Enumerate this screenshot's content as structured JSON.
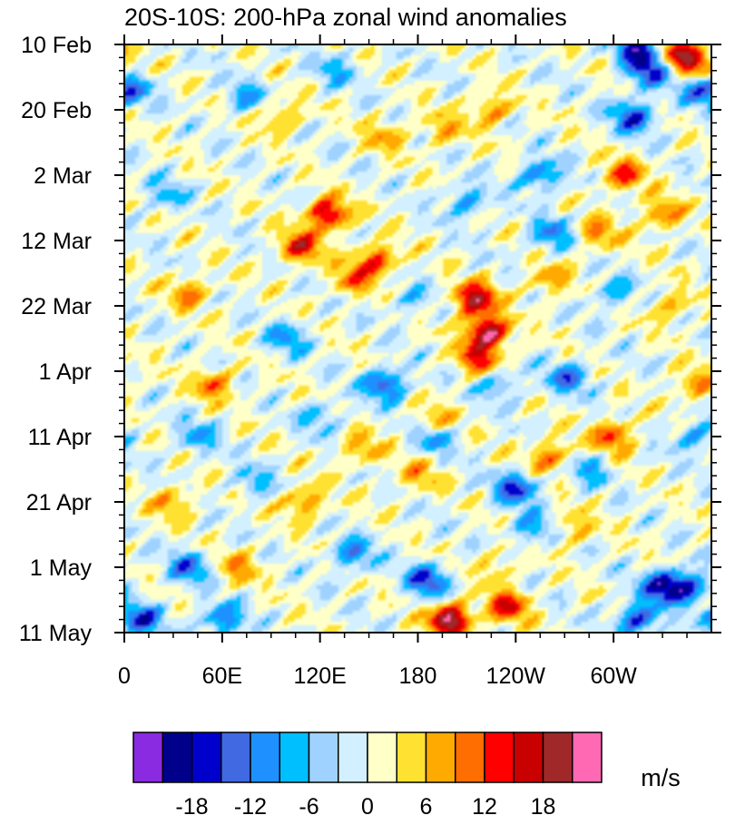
{
  "chart_data": {
    "type": "heatmap",
    "title": "20S-10S: 200-hPa zonal wind anomalies",
    "x_tick_labels": [
      "0",
      "60E",
      "120E",
      "180",
      "120W",
      "60W"
    ],
    "x_tick_degrees": [
      0,
      60,
      120,
      180,
      240,
      300
    ],
    "x_range_degrees": [
      0,
      360
    ],
    "y_tick_labels": [
      "10 Feb",
      "20 Feb",
      "2 Mar",
      "12 Mar",
      "22 Mar",
      "1 Apr",
      "11 Apr",
      "21 Apr",
      "1 May",
      "11 May"
    ],
    "y_tick_days": [
      0,
      10,
      20,
      30,
      40,
      50,
      60,
      70,
      80,
      90
    ],
    "y_range_days": [
      0,
      90
    ],
    "colorbar": {
      "unit": "m/s",
      "tick_labels": [
        "-18",
        "-12",
        "-6",
        "0",
        "6",
        "12",
        "18"
      ],
      "tick_values": [
        -18,
        -12,
        -6,
        0,
        6,
        12,
        18
      ],
      "levels": [
        -21,
        -18,
        -15,
        -12,
        -9,
        -6,
        -3,
        0,
        3,
        6,
        9,
        12,
        15,
        18,
        21
      ],
      "colors": [
        "#8a2be2",
        "#00008b",
        "#0000cd",
        "#4169e1",
        "#1e90ff",
        "#00bfff",
        "#a0d2ff",
        "#d2f0ff",
        "#ffffc8",
        "#ffe132",
        "#ffaa00",
        "#ff6e00",
        "#ff0000",
        "#c80000",
        "#a02828",
        "#ff69b4"
      ]
    },
    "features": [
      {
        "lon": 315,
        "day": 0.5,
        "value": -18
      },
      {
        "lon": 322,
        "day": 4,
        "value": -16
      },
      {
        "lon": 312,
        "day": 11,
        "value": -15
      },
      {
        "lon": 348,
        "day": 3,
        "value": 13
      },
      {
        "lon": 337,
        "day": 1,
        "value": 12
      },
      {
        "lon": 125,
        "day": 26,
        "value": 18
      },
      {
        "lon": 108,
        "day": 31,
        "value": 14
      },
      {
        "lon": 215,
        "day": 39,
        "value": 19
      },
      {
        "lon": 223,
        "day": 44,
        "value": 21
      },
      {
        "lon": 217,
        "day": 48,
        "value": 13
      },
      {
        "lon": 300,
        "day": 60,
        "value": 12
      },
      {
        "lon": 262,
        "day": 63,
        "value": 11
      },
      {
        "lon": 155,
        "day": 33,
        "value": 13
      },
      {
        "lon": 200,
        "day": 88,
        "value": 22
      },
      {
        "lon": 235,
        "day": 86,
        "value": 14
      },
      {
        "lon": 225,
        "day": 10,
        "value": 9
      },
      {
        "lon": 306,
        "day": 20,
        "value": 12
      },
      {
        "lon": 330,
        "day": 26,
        "value": 10
      },
      {
        "lon": 290,
        "day": 29,
        "value": 9
      },
      {
        "lon": 40,
        "day": 38,
        "value": 9
      },
      {
        "lon": 55,
        "day": 52,
        "value": 10
      },
      {
        "lon": 140,
        "day": 36,
        "value": 9
      },
      {
        "lon": 190,
        "day": 58,
        "value": 9
      },
      {
        "lon": 110,
        "day": 70,
        "value": 10
      },
      {
        "lon": 30,
        "day": 70,
        "value": 8
      },
      {
        "lon": 70,
        "day": 80,
        "value": 8
      },
      {
        "lon": 260,
        "day": 36,
        "value": 8
      },
      {
        "lon": 350,
        "day": 52,
        "value": 9
      },
      {
        "lon": 335,
        "day": 40,
        "value": 7
      },
      {
        "lon": 96,
        "day": 11,
        "value": 8
      },
      {
        "lon": 160,
        "day": 14,
        "value": 7
      },
      {
        "lon": 195,
        "day": 13,
        "value": 7
      },
      {
        "lon": 145,
        "day": 62,
        "value": 8
      },
      {
        "lon": 180,
        "day": 66,
        "value": 7
      },
      {
        "lon": 275,
        "day": 74,
        "value": 7
      },
      {
        "lon": 228,
        "day": 80,
        "value": 6
      },
      {
        "lon": 10,
        "day": 88,
        "value": -15
      },
      {
        "lon": 40,
        "day": 80,
        "value": -12
      },
      {
        "lon": 5,
        "day": 7,
        "value": -9
      },
      {
        "lon": 60,
        "day": 88,
        "value": -12
      },
      {
        "lon": 160,
        "day": 52,
        "value": -15
      },
      {
        "lon": 190,
        "day": 60,
        "value": -11
      },
      {
        "lon": 140,
        "day": 78,
        "value": -11
      },
      {
        "lon": 186,
        "day": 82,
        "value": -15
      },
      {
        "lon": 240,
        "day": 68,
        "value": -15
      },
      {
        "lon": 272,
        "day": 51,
        "value": -12
      },
      {
        "lon": 255,
        "day": 20,
        "value": -12
      },
      {
        "lon": 262,
        "day": 29,
        "value": -11
      },
      {
        "lon": 330,
        "day": 83,
        "value": -17
      },
      {
        "lon": 345,
        "day": 83,
        "value": -14
      },
      {
        "lon": 315,
        "day": 88,
        "value": -15
      },
      {
        "lon": 352,
        "day": 7,
        "value": -9
      },
      {
        "lon": 75,
        "day": 8,
        "value": -8
      },
      {
        "lon": 100,
        "day": 45,
        "value": -9
      },
      {
        "lon": 210,
        "day": 24,
        "value": -9
      },
      {
        "lon": 45,
        "day": 60,
        "value": -8
      },
      {
        "lon": 300,
        "day": 38,
        "value": -8
      },
      {
        "lon": 250,
        "day": 74,
        "value": -9
      },
      {
        "lon": 130,
        "day": 4,
        "value": -7
      },
      {
        "lon": 25,
        "day": 23,
        "value": -7
      },
      {
        "lon": 230,
        "day": 52,
        "value": -8
      },
      {
        "lon": 350,
        "day": 60,
        "value": -9
      },
      {
        "lon": 80,
        "day": 67,
        "value": -7
      },
      {
        "lon": 285,
        "day": 65,
        "value": -8
      },
      {
        "lon": 175,
        "day": 39,
        "value": -6
      },
      {
        "lon": 120,
        "day": 57,
        "value": -7
      }
    ]
  }
}
